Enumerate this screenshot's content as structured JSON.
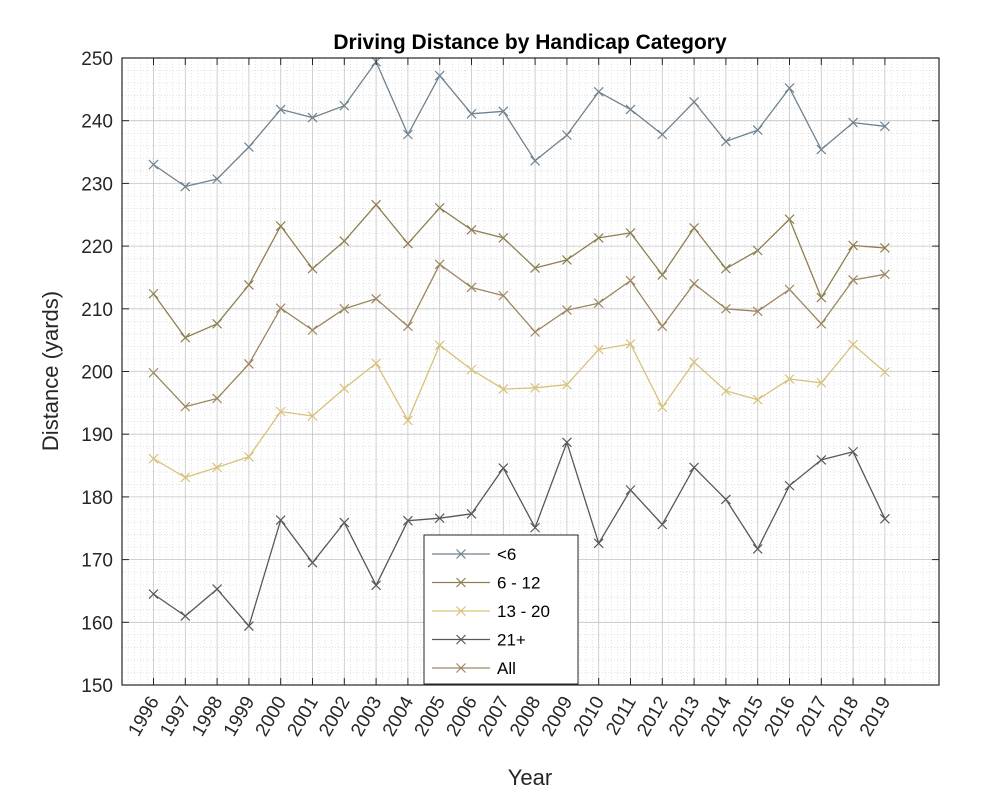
{
  "chart_data": {
    "type": "line",
    "title": "Driving Distance by Handicap Category",
    "xlabel": "Year",
    "ylabel": "Distance (yards)",
    "ylim": [
      150,
      250
    ],
    "yticks": [
      "150",
      "160",
      "170",
      "180",
      "190",
      "200",
      "210",
      "220",
      "230",
      "240",
      "250"
    ],
    "categories": [
      "1996",
      "1997",
      "1998",
      "1999",
      "2000",
      "2001",
      "2002",
      "2003",
      "2004",
      "2005",
      "2006",
      "2007",
      "2008",
      "2009",
      "2010",
      "2011",
      "2012",
      "2013",
      "2014",
      "2015",
      "2016",
      "2017",
      "2018",
      "2019"
    ],
    "grid": true,
    "minor_grid": true,
    "legend_position": "bottom-center",
    "marker": "x",
    "series": [
      {
        "name": "<6",
        "color": "#6f8290",
        "values": [
          233,
          229.5,
          230.7,
          235.8,
          241.8,
          240.5,
          242.4,
          249.4,
          237.8,
          247.2,
          241.1,
          241.5,
          233.6,
          237.7,
          244.6,
          241.8,
          237.8,
          243,
          236.7,
          238.5,
          245.2,
          235.4,
          239.7,
          239.1
        ]
      },
      {
        "name": "6 - 12",
        "color": "#8e7f50",
        "values": [
          212.4,
          205.4,
          207.6,
          213.8,
          223.2,
          216.4,
          220.8,
          226.6,
          220.4,
          226.1,
          222.6,
          221.3,
          216.5,
          217.8,
          221.3,
          222.1,
          215.4,
          222.9,
          216.4,
          219.3,
          224.3,
          211.8,
          220.1,
          219.7
        ]
      },
      {
        "name": "13 - 20",
        "color": "#d8c27a",
        "values": [
          186.1,
          183.1,
          184.7,
          186.4,
          193.6,
          192.9,
          197.3,
          201.3,
          192.2,
          204.2,
          200.3,
          197.2,
          197.4,
          197.9,
          203.5,
          204.4,
          194.3,
          201.5,
          196.9,
          195.5,
          198.8,
          198.2,
          204.3,
          199.9
        ]
      },
      {
        "name": "21+",
        "color": "#58585a",
        "values": [
          164.5,
          161,
          165.3,
          159.4,
          176.3,
          169.5,
          175.9,
          165.9,
          176.2,
          176.6,
          177.3,
          184.6,
          175.1,
          188.7,
          172.6,
          181.1,
          175.6,
          184.7,
          179.6,
          171.7,
          181.8,
          185.9,
          187.2,
          176.5
        ]
      },
      {
        "name": "All",
        "color": "#9c8660",
        "values": [
          199.8,
          194.4,
          195.7,
          201.2,
          210.1,
          206.6,
          210,
          211.6,
          207.2,
          217.1,
          213.4,
          212.1,
          206.3,
          209.8,
          210.9,
          214.5,
          207.2,
          214,
          210,
          209.6,
          213.1,
          207.6,
          214.6,
          215.5
        ]
      }
    ]
  }
}
